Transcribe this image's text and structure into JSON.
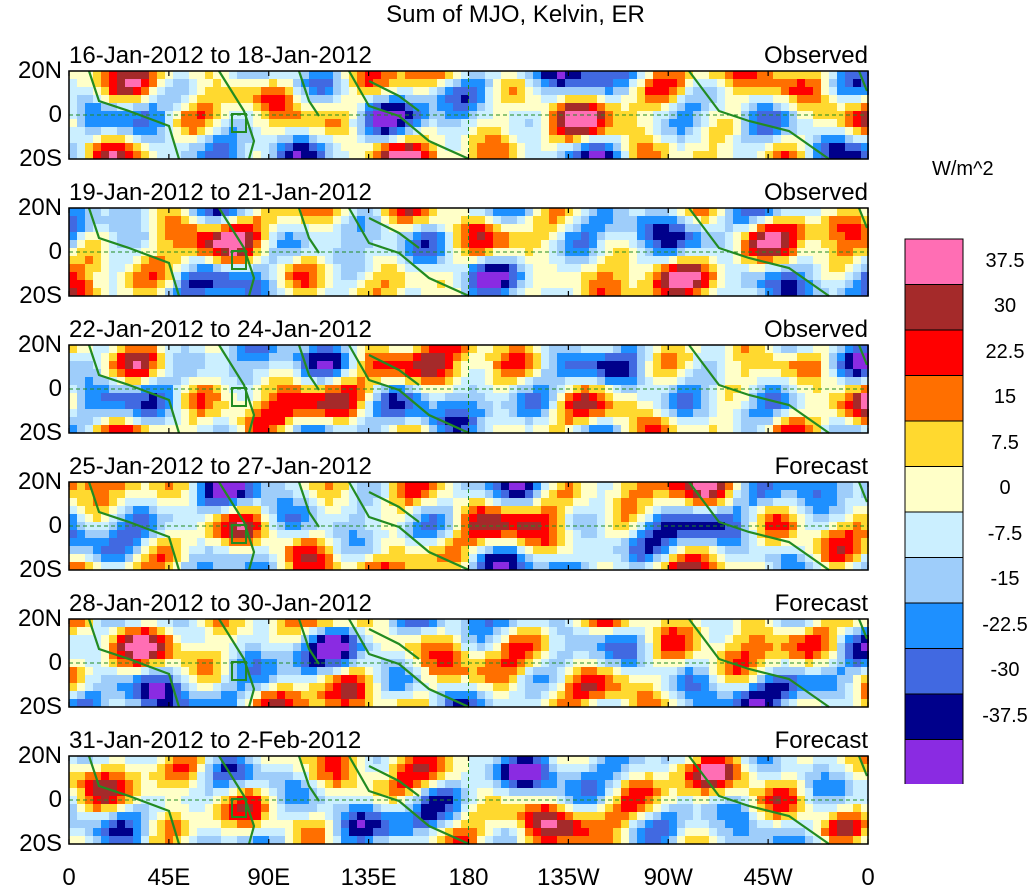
{
  "title": "Sum of MJO, Kelvin, ER",
  "panels": [
    {
      "dates": "16-Jan-2012 to 18-Jan-2012",
      "label": "Observed"
    },
    {
      "dates": "19-Jan-2012 to 21-Jan-2012",
      "label": "Observed"
    },
    {
      "dates": "22-Jan-2012 to 24-Jan-2012",
      "label": "Observed"
    },
    {
      "dates": "25-Jan-2012 to 27-Jan-2012",
      "label": "Forecast"
    },
    {
      "dates": "28-Jan-2012 to 30-Jan-2012",
      "label": "Forecast"
    },
    {
      "dates": "31-Jan-2012 to 2-Feb-2012",
      "label": "Forecast"
    }
  ],
  "lat_labels": [
    "20N",
    "0",
    "20S"
  ],
  "lon_labels": [
    "0",
    "45E",
    "90E",
    "135E",
    "180",
    "135W",
    "90W",
    "45W",
    "0"
  ],
  "colorbar": {
    "units": "W/m^2",
    "labels": [
      "37.5",
      "30",
      "22.5",
      "15",
      "7.5",
      "0",
      "-7.5",
      "-15",
      "-22.5",
      "-30",
      "-37.5"
    ],
    "colors": [
      "#ff6eb4",
      "#a52a2a",
      "#ff0000",
      "#ff6f00",
      "#ffd92f",
      "#ffffc8",
      "#cbefff",
      "#9ecdfa",
      "#1e90ff",
      "#4169e1",
      "#00008b",
      "#8a2be2"
    ]
  },
  "map_colors": {
    "coast": "#228b22",
    "dash": "#228b22"
  }
}
